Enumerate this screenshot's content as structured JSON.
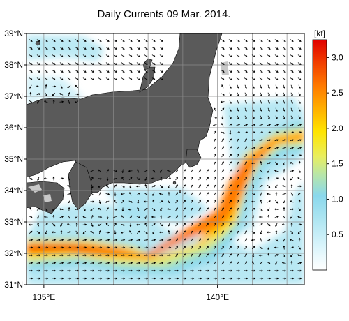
{
  "title": "Daily Currents 09 Mar. 2014.",
  "map": {
    "lat_labels": [
      "39°N",
      "38°N",
      "37°N",
      "36°N",
      "35°N",
      "34°N",
      "33°N",
      "32°N",
      "31°N"
    ],
    "lat_values": [
      39,
      38,
      37,
      36,
      35,
      34,
      33,
      32,
      31
    ],
    "lon_labels": [
      "135°E",
      "140°E"
    ],
    "lon_values": [
      135,
      140
    ],
    "extent": {
      "lon_min": 134.5,
      "lon_max": 142.5,
      "lat_min": 31,
      "lat_max": 39
    },
    "land_color": "#5a5a5a",
    "grid_color": "#8c8c8c"
  },
  "colorbar": {
    "unit": "[kt]",
    "tick_labels": [
      "3.0",
      "2.5",
      "2.0",
      "1.5",
      "1.0",
      "0.5"
    ],
    "tick_values": [
      3.0,
      2.5,
      2.0,
      1.5,
      1.0,
      0.5
    ],
    "range": [
      0,
      3.25
    ],
    "stops": [
      {
        "v": 0.0,
        "color": "#ffffff"
      },
      {
        "v": 0.35,
        "color": "#d8f4fb"
      },
      {
        "v": 0.7,
        "color": "#b0e6f2"
      },
      {
        "v": 1.05,
        "color": "#8ad8ec"
      },
      {
        "v": 1.35,
        "color": "#b8e6a8"
      },
      {
        "v": 1.6,
        "color": "#e8ee60"
      },
      {
        "v": 1.95,
        "color": "#ffe500"
      },
      {
        "v": 2.25,
        "color": "#ffb400"
      },
      {
        "v": 2.6,
        "color": "#ff7a00"
      },
      {
        "v": 2.95,
        "color": "#f03a00"
      },
      {
        "v": 3.25,
        "color": "#e00000"
      }
    ]
  }
}
